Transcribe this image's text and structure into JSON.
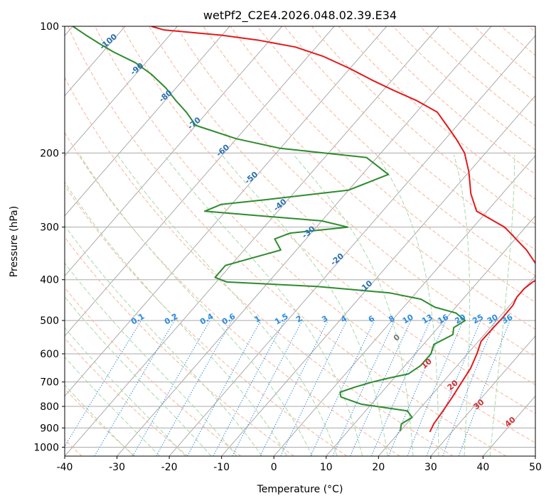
{
  "chart_data": {
    "type": "line",
    "title": "wetPf2_C2E4.2026.048.02.39.E34",
    "xlabel": "Temperature (°C)",
    "ylabel": "Pressure (hPa)",
    "xlim": [
      -40,
      50
    ],
    "ylim": [
      1050,
      100
    ],
    "y_scale": "log",
    "x_ticks": [
      "-40",
      "-30",
      "-20",
      "-10",
      "0",
      "10",
      "20",
      "30",
      "40",
      "50"
    ],
    "y_ticks": [
      "100",
      "200",
      "300",
      "400",
      "500",
      "600",
      "700",
      "800",
      "900",
      "1000"
    ],
    "grid": true,
    "series": [
      {
        "role": "temperature",
        "color": "#e31a1c",
        "x": [
          25.8,
          25.2,
          24.8,
          24.3,
          23.6,
          23.0,
          21.8,
          20.5,
          20.6,
          20.7,
          20.6,
          20.0,
          20.0,
          20.5,
          21.5,
          20.0,
          14.0,
          6.0,
          -2.0,
          -6.0,
          -10.0,
          -14.0,
          -18.0,
          -22.0,
          -26.0,
          -32.0,
          -38.0,
          -44.0,
          -50.0,
          -57.0,
          -64.0,
          -72.0,
          -80.0,
          -88.0,
          -92.0,
          -95.0
        ],
        "y": [
          920,
          880,
          820,
          760,
          700,
          650,
          600,
          560,
          520,
          490,
          460,
          440,
          420,
          405,
          395,
          380,
          340,
          300,
          275,
          250,
          222,
          200,
          185,
          172,
          160,
          150,
          142,
          134,
          126,
          118,
          112,
          108,
          105,
          103,
          102,
          100
        ]
      },
      {
        "role": "dewpoint",
        "color": "#2e8b2e",
        "x": [
          20.0,
          19.0,
          20.0,
          18.0,
          8.0,
          3.0,
          2.0,
          4.0,
          6.5,
          9.0,
          12.0,
          13.0,
          13.0,
          12.0,
          14.0,
          13.0,
          14.0,
          11.0,
          6.0,
          4.0,
          2.0,
          -5.0,
          -20.0,
          -38.0,
          -41.0,
          -41.0,
          -33.0,
          -36.0,
          -34.0,
          -24.0,
          -30.0,
          -54.0,
          -52.0,
          -44.0,
          -30.0,
          -25.0,
          -32.0,
          -50.0,
          -60.0,
          -70.0,
          -74.0,
          -78.0,
          -82.0,
          -87.0,
          -92.0,
          -98.0,
          -102.0,
          -106.0,
          -110.0
        ],
        "y": [
          915,
          880,
          850,
          820,
          790,
          760,
          740,
          720,
          700,
          685,
          670,
          640,
          600,
          570,
          540,
          520,
          500,
          480,
          465,
          455,
          445,
          430,
          415,
          405,
          395,
          370,
          340,
          320,
          310,
          300,
          290,
          275,
          265,
          258,
          245,
          225,
          205,
          195,
          185,
          172,
          160,
          150,
          140,
          130,
          122,
          115,
          110,
          105,
          100
        ]
      }
    ],
    "mixing_ratio_labels": [
      "0.1",
      "0.2",
      "0.4",
      "0.6",
      "1",
      "1.5",
      "2",
      "3",
      "4",
      "6",
      "8",
      "10",
      "13",
      "16",
      "20",
      "25",
      "30",
      "36"
    ],
    "dry_adiabat_labels": [
      "-100",
      "-90",
      "-80",
      "-70",
      "-60",
      "-50",
      "-40",
      "-30",
      "-20",
      "-10"
    ],
    "moist_adiabat_labels": [
      "0",
      "10",
      "20",
      "30",
      "40"
    ]
  }
}
